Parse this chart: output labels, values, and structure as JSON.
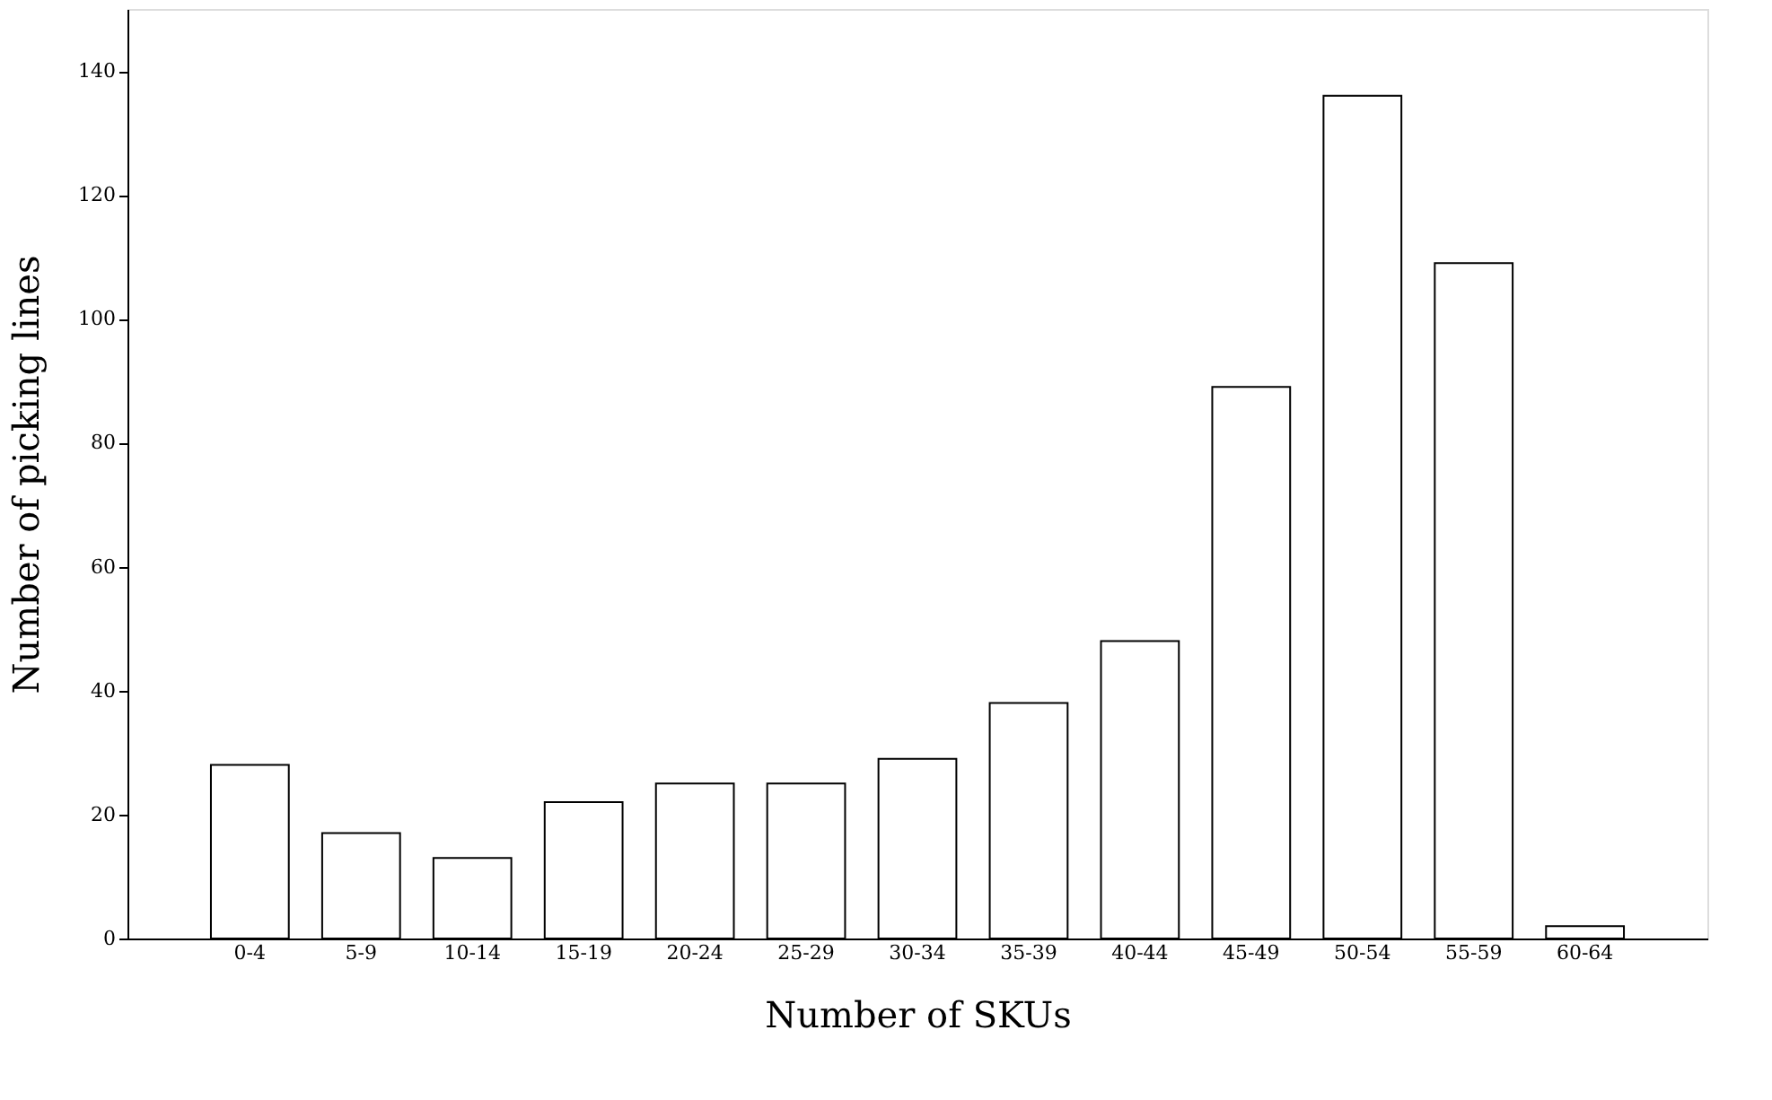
{
  "chart_data": {
    "type": "bar",
    "xlabel": "Number of SKUs",
    "ylabel": "Number of picking lines",
    "categories": [
      "0-4",
      "5-9",
      "10-14",
      "15-19",
      "20-24",
      "25-29",
      "30-34",
      "35-39",
      "40-44",
      "45-49",
      "50-54",
      "55-59",
      "60-64"
    ],
    "values": [
      28,
      17,
      13,
      22,
      25,
      25,
      29,
      38,
      48,
      89,
      136,
      109,
      2
    ],
    "color": "#ffffff",
    "ylim": [
      0,
      150
    ],
    "yticks": [
      0,
      20,
      40,
      60,
      80,
      100,
      120,
      140
    ],
    "grid": false
  }
}
